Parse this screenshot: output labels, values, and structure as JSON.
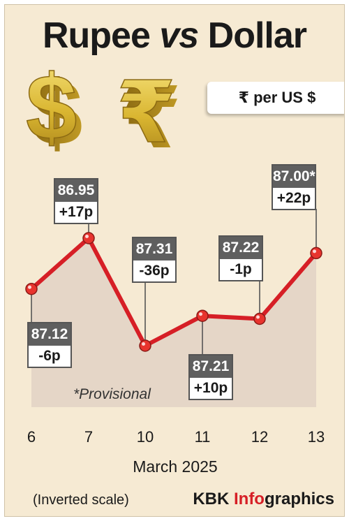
{
  "header": {
    "title_part1": "Rupee",
    "title_part2": "vs",
    "title_part3": "Dollar",
    "unit": "₹ per US $"
  },
  "icons": [
    "dollar-symbol-icon",
    "rupee-symbol-icon"
  ],
  "colors": {
    "background": "#f6ead3",
    "line": "#d61f26",
    "area": "#e2d2c4",
    "label_dark": "#5f5f5f",
    "brand_accent": "#d61f26"
  },
  "chart_data": {
    "type": "line",
    "x": [
      "6",
      "7",
      "10",
      "11",
      "12",
      "13"
    ],
    "values": [
      87.12,
      86.95,
      87.31,
      87.21,
      87.22,
      87.0
    ],
    "value_labels": [
      "87.12",
      "86.95",
      "87.31",
      "87.21",
      "87.22",
      "87.00*"
    ],
    "change_labels": [
      "-6p",
      "+17p",
      "-36p",
      "+10p",
      "-1p",
      "+22p"
    ],
    "xlabel": "March 2025",
    "inverted_y": true,
    "y_note": "(Inverted scale)",
    "annotation": "*Provisional",
    "grid": false
  },
  "footer": {
    "brand_part1": "KBK ",
    "brand_part2": "Info",
    "brand_part3": "graphics"
  }
}
